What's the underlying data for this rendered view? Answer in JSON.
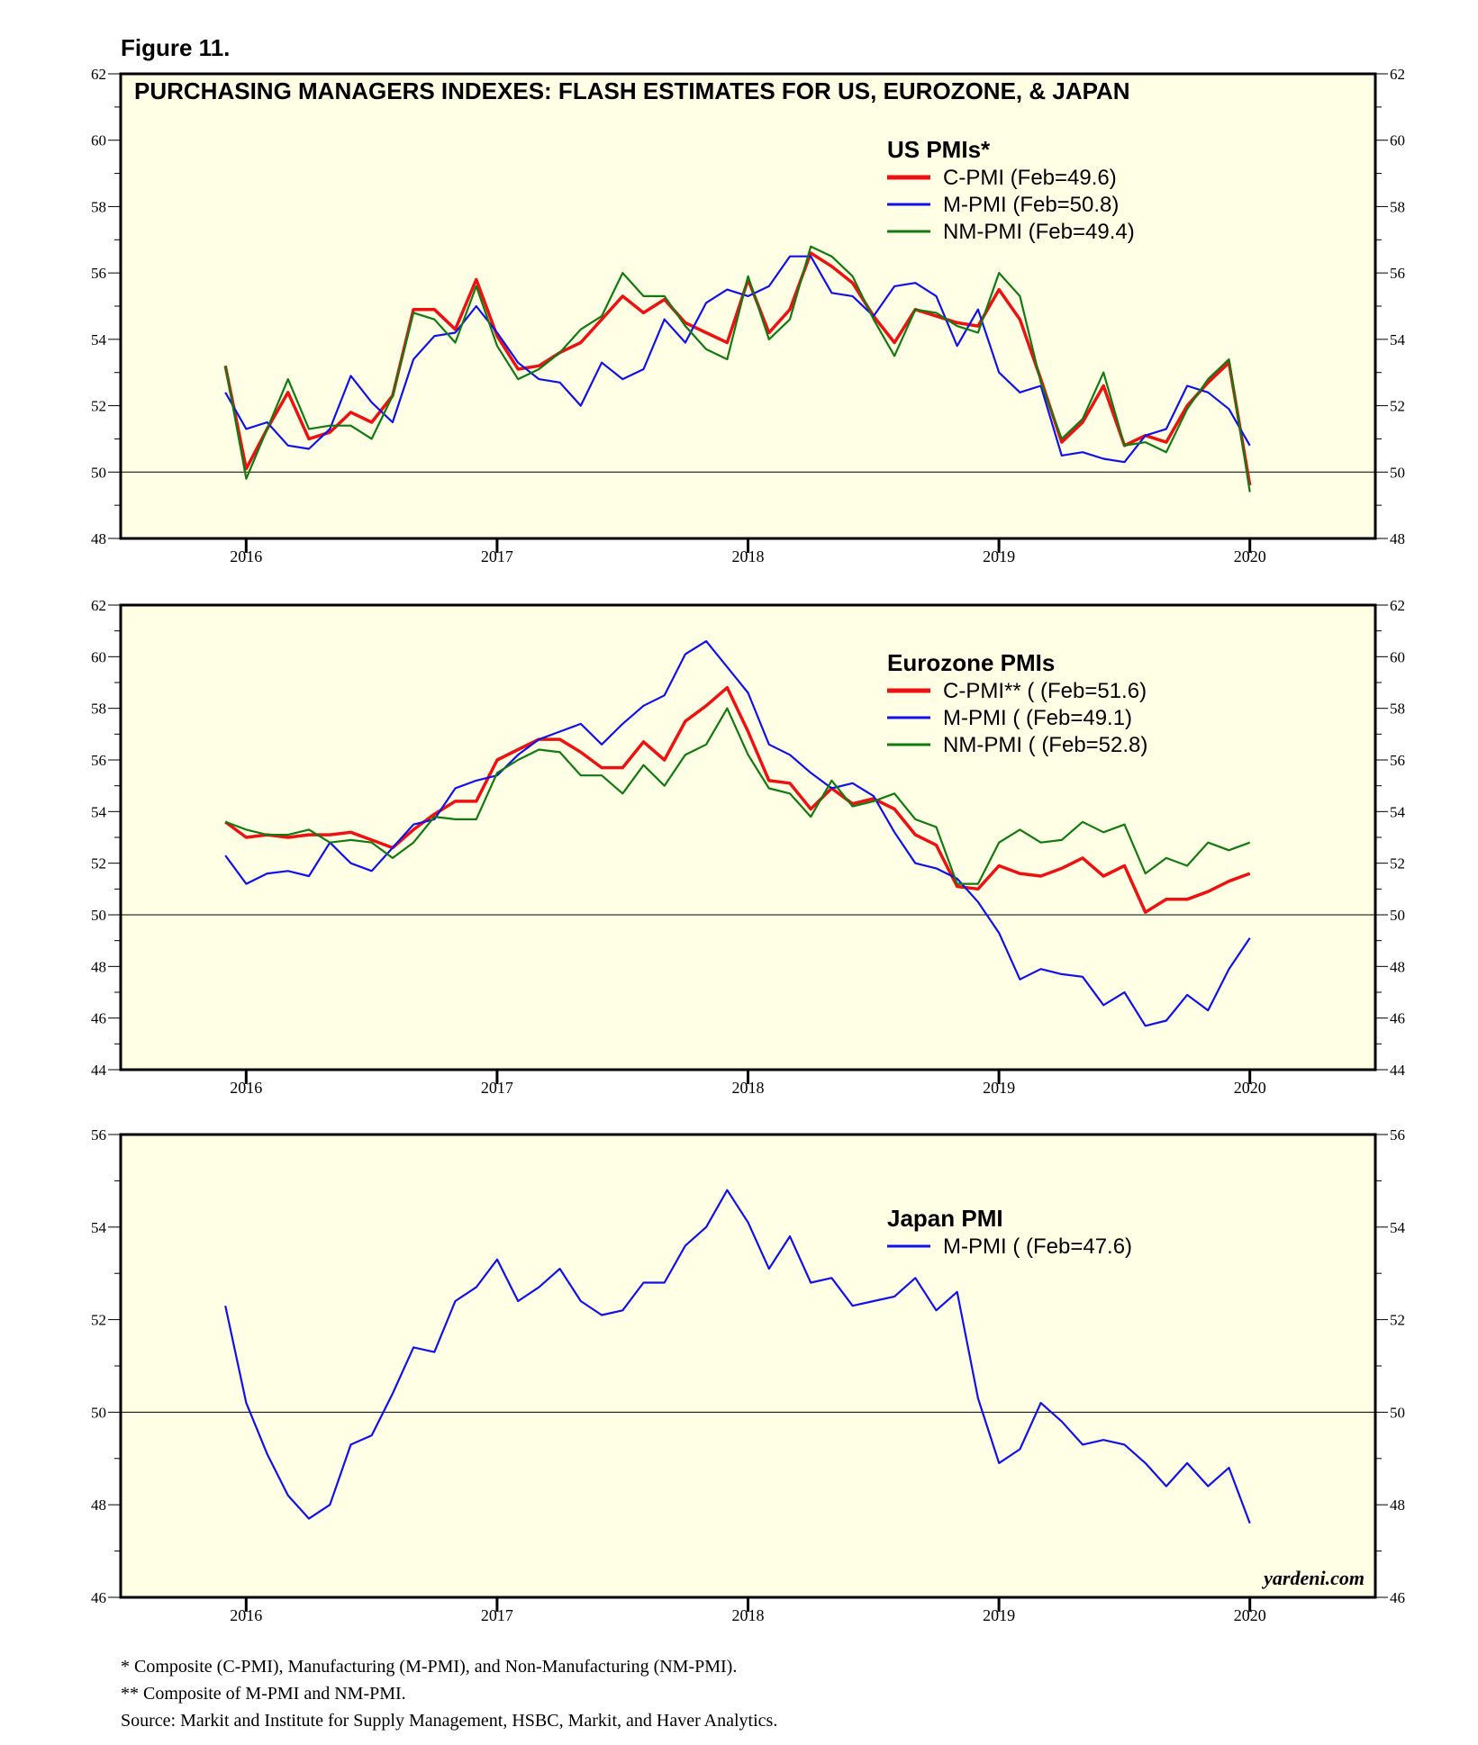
{
  "figure_label": "Figure 11.",
  "watermark": "yardeni.com",
  "footnotes": [
    " * Composite (C-PMI), Manufacturing (M-PMI), and Non-Manufacturing (NM-PMI).",
    "** Composite of M-PMI and NM-PMI.",
    "Source: Markit and Institute for Supply Management, HSBC, Markit, and Haver Analytics."
  ],
  "colors": {
    "red": "#ee1111",
    "blue": "#1111ee",
    "green": "#117a11",
    "panel_bg": "#ffffe6"
  },
  "chart_data": [
    {
      "type": "line",
      "title": "PURCHASING MANAGERS INDEXES: FLASH ESTIMATES FOR US, EUROZONE, & JAPAN",
      "legend_title": "US PMIs*",
      "x_start": 2015.917,
      "x_step": 0.08333,
      "xlim": [
        2015.5,
        2020.5
      ],
      "x_ticks": [
        "2016",
        "2017",
        "2018",
        "2019",
        "2020"
      ],
      "ylim": [
        48,
        62
      ],
      "y_ticks": [
        48,
        50,
        52,
        54,
        56,
        58,
        60,
        62
      ],
      "ref_line": 50,
      "series": [
        {
          "name": "C-PMI (Feb=49.6)",
          "color": "red",
          "values": [
            53.2,
            50.1,
            51.3,
            52.4,
            51,
            51.2,
            51.8,
            51.5,
            52.3,
            54.9,
            54.9,
            54.3,
            55.8,
            54.1,
            53.1,
            53.2,
            53.6,
            53.9,
            54.6,
            55.3,
            54.8,
            55.2,
            54.5,
            54.2,
            53.9,
            55.8,
            54.2,
            54.9,
            56.6,
            56.2,
            55.7,
            54.7,
            53.9,
            54.9,
            54.7,
            54.5,
            54.4,
            55.5,
            54.6,
            52.8,
            50.9,
            51.5,
            52.6,
            50.8,
            51.1,
            50.9,
            52,
            52.7,
            53.3,
            49.6
          ]
        },
        {
          "name": "M-PMI (Feb=50.8)",
          "color": "blue",
          "values": [
            52.4,
            51.3,
            51.5,
            50.8,
            50.7,
            51.3,
            52.9,
            52.1,
            51.5,
            53.4,
            54.1,
            54.2,
            55,
            54.2,
            53.3,
            52.8,
            52.7,
            52,
            53.3,
            52.8,
            53.1,
            54.6,
            53.9,
            55.1,
            55.5,
            55.3,
            55.6,
            56.5,
            56.5,
            55.4,
            55.3,
            54.7,
            55.6,
            55.7,
            55.3,
            53.8,
            54.9,
            53,
            52.4,
            52.6,
            50.5,
            50.6,
            50.4,
            50.3,
            51.1,
            51.3,
            52.6,
            52.4,
            51.9,
            50.8
          ]
        },
        {
          "name": "NM-PMI (Feb=49.4)",
          "color": "green",
          "values": [
            53.2,
            49.8,
            51.3,
            52.8,
            51.3,
            51.4,
            51.4,
            51,
            52.3,
            54.8,
            54.6,
            53.9,
            55.6,
            53.8,
            52.8,
            53.1,
            53.6,
            54.3,
            54.7,
            56,
            55.3,
            55.3,
            54.4,
            53.7,
            53.4,
            55.9,
            54,
            54.6,
            56.8,
            56.5,
            55.9,
            54.6,
            53.5,
            54.9,
            54.8,
            54.4,
            54.2,
            56,
            55.3,
            52.7,
            51,
            51.6,
            53,
            50.8,
            50.9,
            50.6,
            51.9,
            52.8,
            53.4,
            49.4
          ]
        }
      ]
    },
    {
      "type": "line",
      "legend_title": "Eurozone PMIs",
      "x_start": 2015.917,
      "x_step": 0.08333,
      "xlim": [
        2015.5,
        2020.5
      ],
      "x_ticks": [
        "2016",
        "2017",
        "2018",
        "2019",
        "2020"
      ],
      "ylim": [
        44,
        62
      ],
      "y_ticks": [
        44,
        46,
        48,
        50,
        52,
        54,
        56,
        58,
        60,
        62
      ],
      "ref_line": 50,
      "series": [
        {
          "name": "C-PMI** ( (Feb=51.6)",
          "color": "red",
          "values": [
            53.6,
            53,
            53.1,
            53,
            53.1,
            53.1,
            53.2,
            52.9,
            52.6,
            53.3,
            53.9,
            54.4,
            54.4,
            56,
            56.4,
            56.8,
            56.8,
            56.3,
            55.7,
            55.7,
            56.7,
            56,
            57.5,
            58.1,
            58.8,
            57.1,
            55.2,
            55.1,
            54.1,
            54.9,
            54.3,
            54.5,
            54.1,
            53.1,
            52.7,
            51.1,
            51,
            51.9,
            51.6,
            51.5,
            51.8,
            52.2,
            51.5,
            51.9,
            50.1,
            50.6,
            50.6,
            50.9,
            51.3,
            51.6
          ]
        },
        {
          "name": "M-PMI ( (Feb=49.1)",
          "color": "blue",
          "values": [
            52.3,
            51.2,
            51.6,
            51.7,
            51.5,
            52.8,
            52,
            51.7,
            52.6,
            53.5,
            53.7,
            54.9,
            55.2,
            55.4,
            56.2,
            56.8,
            57.1,
            57.4,
            56.6,
            57.4,
            58.1,
            58.5,
            60.1,
            60.6,
            59.6,
            58.6,
            56.6,
            56.2,
            55.5,
            54.9,
            55.1,
            54.6,
            53.2,
            52,
            51.8,
            51.4,
            50.5,
            49.3,
            47.5,
            47.9,
            47.7,
            47.6,
            46.5,
            47,
            45.7,
            45.9,
            46.9,
            46.3,
            47.9,
            49.1
          ]
        },
        {
          "name": "NM-PMI ( (Feb=52.8)",
          "color": "green",
          "values": [
            53.6,
            53.3,
            53.1,
            53.1,
            53.3,
            52.8,
            52.9,
            52.8,
            52.2,
            52.8,
            53.8,
            53.7,
            53.7,
            55.5,
            56,
            56.4,
            56.3,
            55.4,
            55.4,
            54.7,
            55.8,
            55,
            56.2,
            56.6,
            58,
            56.2,
            54.9,
            54.7,
            53.8,
            55.2,
            54.2,
            54.4,
            54.7,
            53.7,
            53.4,
            51.2,
            51.2,
            52.8,
            53.3,
            52.8,
            52.9,
            53.6,
            53.2,
            53.5,
            51.6,
            52.2,
            51.9,
            52.8,
            52.5,
            52.8
          ]
        }
      ]
    },
    {
      "type": "line",
      "legend_title": "Japan PMI",
      "x_start": 2015.917,
      "x_step": 0.08333,
      "xlim": [
        2015.5,
        2020.5
      ],
      "x_ticks": [
        "2016",
        "2017",
        "2018",
        "2019",
        "2020"
      ],
      "ylim": [
        46,
        56
      ],
      "y_ticks": [
        46,
        48,
        50,
        52,
        54,
        56
      ],
      "ref_line": 50,
      "series": [
        {
          "name": "M-PMI ( (Feb=47.6)",
          "color": "blue",
          "values": [
            52.3,
            50.2,
            49.1,
            48.2,
            47.7,
            48,
            49.3,
            49.5,
            50.4,
            51.4,
            51.3,
            52.4,
            52.7,
            53.3,
            52.4,
            52.7,
            53.1,
            52.4,
            52.1,
            52.2,
            52.8,
            52.8,
            53.6,
            54,
            54.8,
            54.1,
            53.1,
            53.8,
            52.8,
            52.9,
            52.3,
            52.4,
            52.5,
            52.9,
            52.2,
            52.6,
            50.3,
            48.9,
            49.2,
            50.2,
            49.8,
            49.3,
            49.4,
            49.3,
            48.9,
            48.4,
            48.9,
            48.4,
            48.8,
            47.6
          ]
        }
      ]
    }
  ]
}
